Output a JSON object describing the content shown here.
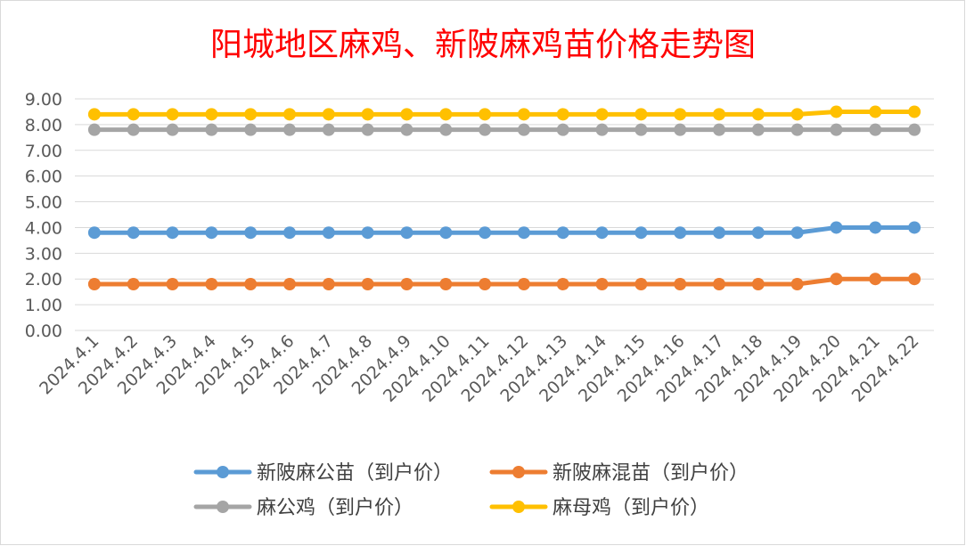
{
  "chart_data": {
    "type": "line",
    "title": "阳城地区麻鸡、新陂麻鸡苗价格走势图",
    "categories": [
      "2024.4.1",
      "2024.4.2",
      "2024.4.3",
      "2024.4.4",
      "2024.4.5",
      "2024.4.6",
      "2024.4.7",
      "2024.4.8",
      "2024.4.9",
      "2024.4.10",
      "2024.4.11",
      "2024.4.12",
      "2024.4.13",
      "2024.4.14",
      "2024.4.15",
      "2024.4.16",
      "2024.4.17",
      "2024.4.18",
      "2024.4.19",
      "2024.4.20",
      "2024.4.21",
      "2024.4.22"
    ],
    "series": [
      {
        "name": "新陂麻公苗（到户价）",
        "color": "#5b9bd5",
        "values": [
          3.8,
          3.8,
          3.8,
          3.8,
          3.8,
          3.8,
          3.8,
          3.8,
          3.8,
          3.8,
          3.8,
          3.8,
          3.8,
          3.8,
          3.8,
          3.8,
          3.8,
          3.8,
          3.8,
          4.0,
          4.0,
          4.0
        ]
      },
      {
        "name": "新陂麻混苗（到户价）",
        "color": "#ed7d31",
        "values": [
          1.8,
          1.8,
          1.8,
          1.8,
          1.8,
          1.8,
          1.8,
          1.8,
          1.8,
          1.8,
          1.8,
          1.8,
          1.8,
          1.8,
          1.8,
          1.8,
          1.8,
          1.8,
          1.8,
          2.0,
          2.0,
          2.0
        ]
      },
      {
        "name": "麻公鸡（到户价）",
        "color": "#a5a5a5",
        "values": [
          7.8,
          7.8,
          7.8,
          7.8,
          7.8,
          7.8,
          7.8,
          7.8,
          7.8,
          7.8,
          7.8,
          7.8,
          7.8,
          7.8,
          7.8,
          7.8,
          7.8,
          7.8,
          7.8,
          7.8,
          7.8,
          7.8
        ]
      },
      {
        "name": "麻母鸡（到户价）",
        "color": "#ffc000",
        "values": [
          8.4,
          8.4,
          8.4,
          8.4,
          8.4,
          8.4,
          8.4,
          8.4,
          8.4,
          8.4,
          8.4,
          8.4,
          8.4,
          8.4,
          8.4,
          8.4,
          8.4,
          8.4,
          8.4,
          8.5,
          8.5,
          8.5
        ]
      }
    ],
    "ylim": [
      0,
      9
    ],
    "yticks": [
      "0.00",
      "1.00",
      "2.00",
      "3.00",
      "4.00",
      "5.00",
      "6.00",
      "7.00",
      "8.00",
      "9.00"
    ],
    "grid": true,
    "legend": "bottom",
    "title_color": "#ff0000"
  }
}
